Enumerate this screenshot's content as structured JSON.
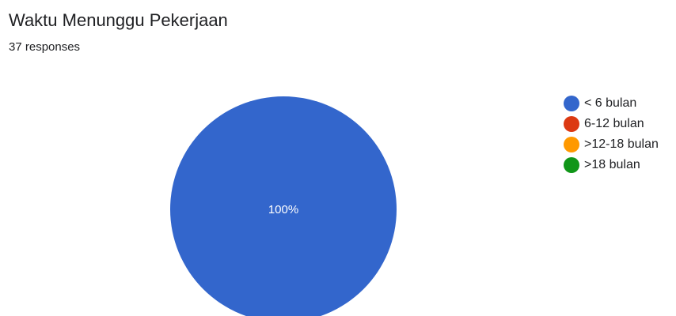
{
  "header": {
    "title": "Waktu Menunggu Pekerjaan",
    "subtitle": "37 responses"
  },
  "chart_data": {
    "type": "pie",
    "title": "Waktu Menunggu Pekerjaan",
    "subtitle": "37 responses",
    "legend_position": "right",
    "slices": [
      {
        "label": "< 6 bulan",
        "value": 100,
        "percent_label": "100%",
        "color": "#3366cc"
      },
      {
        "label": "6-12 bulan",
        "value": 0,
        "percent_label": "",
        "color": "#dc3912"
      },
      {
        "label": ">12-18 bulan",
        "value": 0,
        "percent_label": "",
        "color": "#ff9900"
      },
      {
        "label": ">18 bulan",
        "value": 0,
        "percent_label": "",
        "color": "#109618"
      }
    ]
  }
}
